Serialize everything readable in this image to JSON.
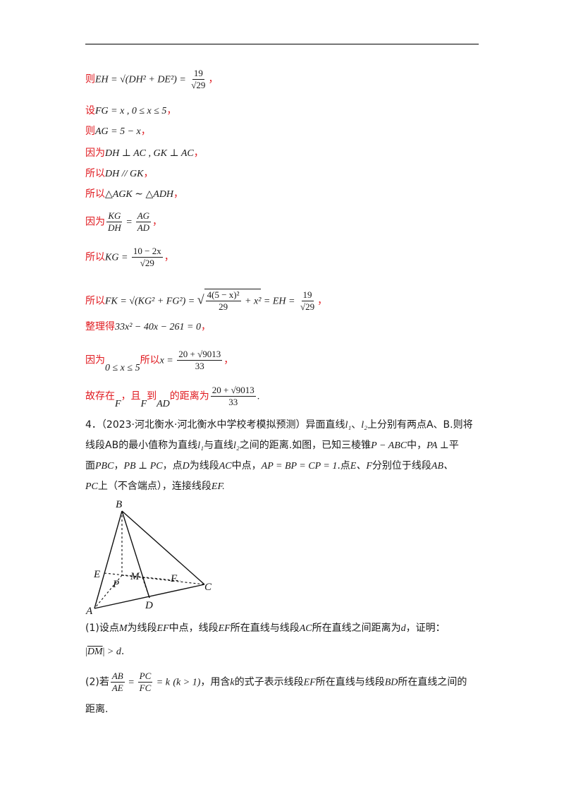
{
  "solution_steps": [
    {
      "red": "则",
      "math": "EH = √(DH² + DE²) = ",
      "frac_num": "19",
      "frac_den": "√29",
      "tail": "，"
    },
    {
      "red": "设",
      "math": "FG = x , 0 ≤ x ≤ 5",
      "tail": "，"
    },
    {
      "red": "则",
      "math": "AG = 5 − x",
      "tail": "，"
    },
    {
      "red": "因为",
      "math": "DH ⊥ AC , GK ⊥ AC",
      "tail": "，"
    },
    {
      "red": "所以",
      "math": "DH // GK",
      "tail": "，"
    },
    {
      "red": "所以",
      "math": "△AGK ∼ △ADH",
      "tail": "，"
    },
    {
      "red": "因为",
      "frac1_num": "KG",
      "frac1_den": "DH",
      "eq": " = ",
      "frac2_num": "AG",
      "frac2_den": "AD",
      "tail": "，"
    },
    {
      "red": "所以",
      "math": "KG = ",
      "frac_num": "10 − 2x",
      "frac_den": "√29",
      "tail": "，"
    },
    {
      "red": "所以",
      "math": "FK = √(KG² + FG²) = ",
      "root_num": "4(5 − x)²",
      "root_den": "29",
      "root_tail": " + x²",
      "math2": " = EH = ",
      "frac_num": "19",
      "frac_den": "√29",
      "tail": "，"
    },
    {
      "red": "整理得",
      "math": "33x² − 40x − 261 = 0",
      "tail": "，"
    },
    {
      "red": "因为",
      "math": "0 ≤ x ≤ 5",
      "red2": "所以",
      "math2": "x = ",
      "frac_num": "20 + √9013",
      "frac_den": "33",
      "tail": "，"
    },
    {
      "red": "故存在",
      "sub1": "F",
      "red2": "，且",
      "sub2": "F",
      "red3": "到",
      "sub3": "AD",
      "red4": "的距离为",
      "frac_num": "20 + √9013",
      "frac_den": "33",
      "tail": "."
    }
  ],
  "problem": {
    "number": "4．",
    "source": "（2023·河北衡水·河北衡水中学校考模拟预测）",
    "text_1": "异面直线",
    "l1": "l₁",
    "sep": "、",
    "l2": "l₂",
    "text_2": "上分别有两点",
    "text_3": "A、B.则将",
    "line2_a": "线段",
    "line2_b": "AB",
    "line2_c": "的最小值称为直线",
    "line2_d": "与直线",
    "line2_e": "之间的距离.如图，已知三棱锥",
    "line2_f": "P − ABC",
    "line2_g": "中，",
    "line2_h": "PA ⊥",
    "line2_i": "平",
    "line3_a": "面",
    "line3_b": "PBC",
    "line3_c": "，",
    "line3_d": "PB ⊥ PC",
    "line3_e": "，点",
    "line3_f": "D",
    "line3_g": "为线段",
    "line3_h": "AC",
    "line3_i": "中点，",
    "line3_j": "AP = BP = CP = 1",
    "line3_k": ".点",
    "line3_l": "E、F",
    "line3_m": "分别位于线段",
    "line3_n": "AB、",
    "line4_a": "PC",
    "line4_b": "上（不含端点），连接线段",
    "line4_c": "EF."
  },
  "figure_labels": {
    "B": "B",
    "E": "E",
    "M": "M",
    "P": "P",
    "F": "F",
    "C": "C",
    "A": "A",
    "D": "D"
  },
  "question_1": {
    "a": "(1)设点",
    "b": "M",
    "c": "为线段",
    "d": "EF",
    "e": "中点，线段",
    "f": "EF",
    "g": "所在直线与线段",
    "h": "AC",
    "i": "所在直线之间距离为",
    "j": "d",
    "k": "，证明：",
    "proof_vec": "DM",
    "proof_tail": " > d",
    "end": "."
  },
  "question_2": {
    "a": "(2)若",
    "f1n": "AB",
    "f1d": "AE",
    "eq1": " = ",
    "f2n": "PC",
    "f2d": "FC",
    "eq2": " = k",
    "cond": "(k > 1)",
    "b": "，用含",
    "c": "k",
    "d": "的式子表示线段",
    "e": "EF",
    "f": "所在直线与线段",
    "g": "BD",
    "h": "所在直线之间的",
    "line2": "距离."
  }
}
